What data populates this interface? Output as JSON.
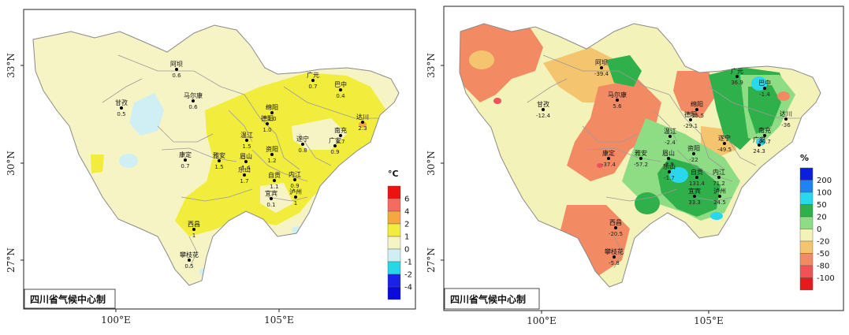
{
  "axes": {
    "lat_labels": [
      "33°N",
      "30°N",
      "27°N"
    ],
    "lon_labels": [
      "100°E",
      "105°E"
    ]
  },
  "panels": [
    {
      "id": "temperature",
      "credit": "四川省气候中心制",
      "legend": {
        "unit": "°C",
        "labels": [
          "6",
          "4",
          "2",
          "1",
          "0",
          "-1",
          "-2",
          "-4"
        ],
        "colors": [
          "#ee1111",
          "#f56b60",
          "#f4a83f",
          "#f2ed3c",
          "#f6f4c4",
          "#cfeff5",
          "#27d7e8",
          "#1a22e6",
          "#0a0adc"
        ]
      },
      "stations": [
        {
          "name": "阿坝",
          "value": "0.6"
        },
        {
          "name": "马尔康",
          "value": "0.6"
        },
        {
          "name": "甘孜",
          "value": "0.5"
        },
        {
          "name": "康定",
          "value": "0.7"
        },
        {
          "name": "雅安",
          "value": "1.5"
        },
        {
          "name": "眉山",
          "value": "1.4"
        },
        {
          "name": "乐山",
          "value": "1.7"
        },
        {
          "name": "温江",
          "value": "1.5"
        },
        {
          "name": "德阳",
          "value": "1.0"
        },
        {
          "name": "绵阳",
          "value": "1.0"
        },
        {
          "name": "广元",
          "value": "0.7"
        },
        {
          "name": "巴中",
          "value": "0.4"
        },
        {
          "name": "达川",
          "value": "2.3"
        },
        {
          "name": "南充",
          "value": "0.7"
        },
        {
          "name": "广安",
          "value": "0.9"
        },
        {
          "name": "遂宁",
          "value": "0.8"
        },
        {
          "name": "资阳",
          "value": "1.2"
        },
        {
          "name": "自贡",
          "value": "1.1"
        },
        {
          "name": "内江",
          "value": "0.9"
        },
        {
          "name": "宜宾",
          "value": "0.1"
        },
        {
          "name": "泸州",
          "value": "1"
        },
        {
          "name": "西昌",
          "value": "1"
        },
        {
          "name": "攀枝花",
          "value": "0.5"
        }
      ]
    },
    {
      "id": "precipitation",
      "credit": "四川省气候中心制",
      "legend": {
        "unit": "%",
        "labels": [
          "200",
          "100",
          "50",
          "20",
          "0",
          "-20",
          "-50",
          "-80",
          "-100"
        ],
        "colors": [
          "#0a1ee0",
          "#1f84f0",
          "#2ad8ee",
          "#2fb04a",
          "#8edc83",
          "#f3f2b8",
          "#f5c46e",
          "#f28a63",
          "#f0525a",
          "#e61a1a"
        ]
      },
      "stations": [
        {
          "name": "阿坝",
          "value": "-39.4"
        },
        {
          "name": "马尔康",
          "value": "5.6"
        },
        {
          "name": "甘孜",
          "value": "-12.4"
        },
        {
          "name": "康定",
          "value": "-37.4"
        },
        {
          "name": "雅安",
          "value": "-57.2"
        },
        {
          "name": "眉山",
          "value": "-3.9"
        },
        {
          "name": "乐山",
          "value": "-1.7"
        },
        {
          "name": "温江",
          "value": "-2.4"
        },
        {
          "name": "德阳",
          "value": "-29.1"
        },
        {
          "name": "绵阳",
          "value": "-25.5"
        },
        {
          "name": "广元",
          "value": "36.9"
        },
        {
          "name": "巴中",
          "value": "-1.4"
        },
        {
          "name": "达川",
          "value": "-36"
        },
        {
          "name": "南充",
          "value": "40.7"
        },
        {
          "name": "广安",
          "value": "24.3"
        },
        {
          "name": "遂宁",
          "value": "-49.5"
        },
        {
          "name": "资阳",
          "value": "-22"
        },
        {
          "name": "自贡",
          "value": "131.4"
        },
        {
          "name": "内江",
          "value": "71.2"
        },
        {
          "name": "宜宾",
          "value": "33.3"
        },
        {
          "name": "泸州",
          "value": "24.5"
        },
        {
          "name": "西昌",
          "value": "-20.5"
        },
        {
          "name": "攀枝花",
          "value": "-5.8"
        }
      ]
    }
  ]
}
